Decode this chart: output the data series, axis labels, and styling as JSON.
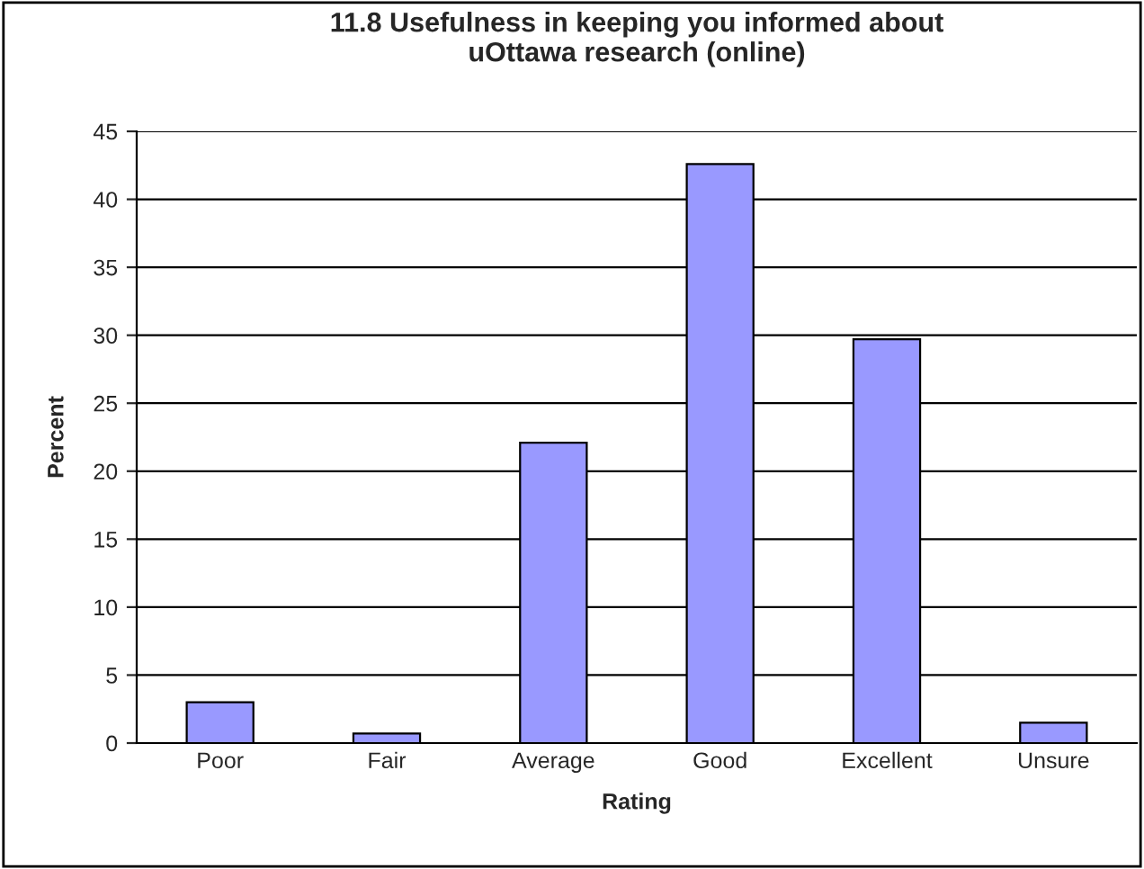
{
  "chart_data": {
    "type": "bar",
    "title": "11.8 Usefulness in keeping you informed about\nuOttawa research (online)",
    "xlabel": "Rating",
    "ylabel": "Percent",
    "categories": [
      "Poor",
      "Fair",
      "Average",
      "Good",
      "Excellent",
      "Unsure"
    ],
    "values": [
      3.0,
      0.7,
      22.1,
      42.6,
      29.7,
      1.5
    ],
    "color": "#9999ff",
    "ylim": [
      0,
      45
    ],
    "yticks": [
      0,
      5,
      10,
      15,
      20,
      25,
      30,
      35,
      40,
      45
    ],
    "grid": "y",
    "legend": false
  }
}
